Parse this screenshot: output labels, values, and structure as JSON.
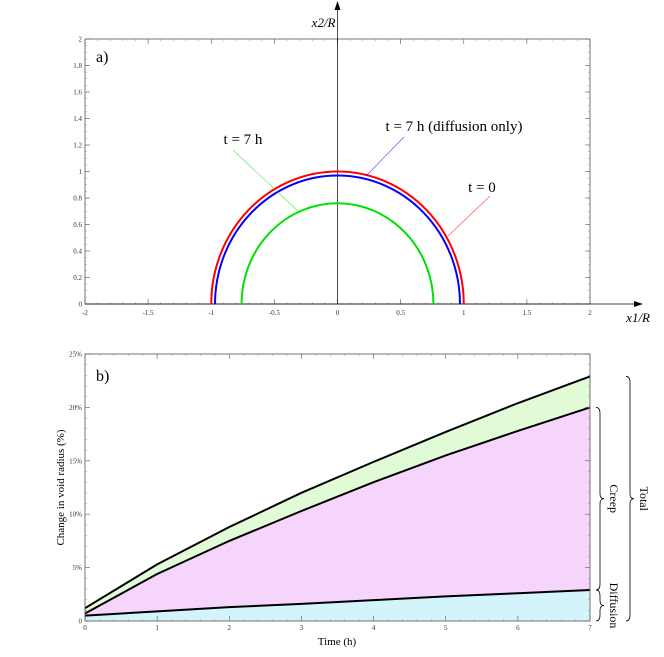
{
  "chart_data": [
    {
      "type": "line",
      "panel_label": "a)",
      "xlabel": "x1/R",
      "ylabel": "x2/R",
      "xlim": [
        -2,
        2
      ],
      "ylim": [
        0,
        2
      ],
      "xticks": [
        "-2",
        "-1.5",
        "-1",
        "-0.5",
        "0",
        "0.5",
        "1",
        "1.5",
        "2"
      ],
      "yticks": [
        "0",
        "0.2",
        "0.4",
        "0.6",
        "0.8",
        "1",
        "1.2",
        "1.4",
        "1.6",
        "1.8",
        "2"
      ],
      "series": [
        {
          "name": "t = 0",
          "shape": "semicircle",
          "radius": 1.0,
          "color": "#ff0000"
        },
        {
          "name": "t = 7 h (diffusion only)",
          "shape": "semicircle",
          "radius": 0.97,
          "color": "#0000ff"
        },
        {
          "name": "t = 7 h",
          "shape": "semicircle",
          "radius": 0.76,
          "color": "#00e000"
        }
      ]
    },
    {
      "type": "area",
      "panel_label": "b)",
      "xlabel": "Time (h)",
      "ylabel": "Change in void radius (%)",
      "xlim": [
        0,
        7
      ],
      "ylim": [
        0,
        25
      ],
      "xticks": [
        "0",
        "1",
        "2",
        "3",
        "4",
        "5",
        "6",
        "7"
      ],
      "yticks": [
        "0",
        "5%",
        "10%",
        "15%",
        "20%",
        "25%"
      ],
      "x": [
        0,
        1,
        2,
        3,
        4,
        5,
        6,
        7
      ],
      "series": [
        {
          "values": [
            0.5,
            0.9,
            1.3,
            1.6,
            1.95,
            2.3,
            2.6,
            2.9
          ],
          "fill": "#d4f4fc"
        },
        {
          "values": [
            0.7,
            4.4,
            7.5,
            10.3,
            13.0,
            15.5,
            17.8,
            20.0
          ],
          "fill": "#f5d5fb"
        },
        {
          "values": [
            1.2,
            5.3,
            8.8,
            12.0,
            14.9,
            17.7,
            20.4,
            22.9
          ],
          "fill": "#e0fbd6"
        }
      ],
      "braces": [
        {
          "label": "Diffusion",
          "from": 0,
          "to": 2.9
        },
        {
          "label": "Creep",
          "from": 2.9,
          "to": 20.0
        },
        {
          "label": "Total",
          "from": 0,
          "to": 22.9
        }
      ]
    }
  ]
}
